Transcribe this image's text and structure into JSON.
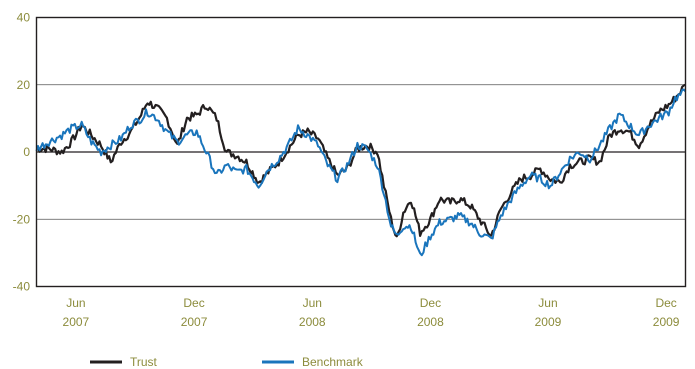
{
  "chart_data": {
    "type": "line",
    "title": "",
    "xlabel": "",
    "ylabel": "",
    "ylim": [
      -40,
      40
    ],
    "yticks": [
      -40,
      -20,
      0,
      20,
      40
    ],
    "gridlines_y": [
      -20,
      0,
      20
    ],
    "grid": true,
    "legend_position": "bottom-left",
    "x_range": [
      "2007-04",
      "2009-12"
    ],
    "x_ticks": [
      {
        "month": "2007-06",
        "label1": "Jun",
        "label2": "2007"
      },
      {
        "month": "2007-12",
        "label1": "Dec",
        "label2": "2007"
      },
      {
        "month": "2008-06",
        "label1": "Jun",
        "label2": "2008"
      },
      {
        "month": "2008-12",
        "label1": "Dec",
        "label2": "2008"
      },
      {
        "month": "2009-06",
        "label1": "Jun",
        "label2": "2009"
      },
      {
        "month": "2009-12",
        "label1": "Dec",
        "label2": "2009"
      }
    ],
    "series": [
      {
        "name": "Trust",
        "color": "#231f20",
        "points": [
          [
            "2007-04-01",
            1
          ],
          [
            "2007-04-20",
            1
          ],
          [
            "2007-05-10",
            0
          ],
          [
            "2007-05-25",
            3
          ],
          [
            "2007-06-10",
            8
          ],
          [
            "2007-06-25",
            5
          ],
          [
            "2007-07-10",
            2
          ],
          [
            "2007-07-25",
            -3
          ],
          [
            "2007-08-10",
            3
          ],
          [
            "2007-08-25",
            6
          ],
          [
            "2007-09-10",
            11
          ],
          [
            "2007-09-20",
            15
          ],
          [
            "2007-10-05",
            13
          ],
          [
            "2007-10-20",
            10
          ],
          [
            "2007-11-05",
            2
          ],
          [
            "2007-11-20",
            10
          ],
          [
            "2007-12-05",
            11
          ],
          [
            "2007-12-20",
            14
          ],
          [
            "2008-01-05",
            10
          ],
          [
            "2008-01-20",
            0
          ],
          [
            "2008-02-05",
            -1
          ],
          [
            "2008-02-20",
            -3
          ],
          [
            "2008-03-10",
            -9
          ],
          [
            "2008-03-25",
            -6
          ],
          [
            "2008-04-10",
            -3
          ],
          [
            "2008-04-25",
            1
          ],
          [
            "2008-05-10",
            5
          ],
          [
            "2008-05-25",
            6
          ],
          [
            "2008-06-10",
            4
          ],
          [
            "2008-06-25",
            -2
          ],
          [
            "2008-07-10",
            -7
          ],
          [
            "2008-07-25",
            -5
          ],
          [
            "2008-08-10",
            1
          ],
          [
            "2008-08-25",
            2
          ],
          [
            "2008-09-10",
            0
          ],
          [
            "2008-09-20",
            -10
          ],
          [
            "2008-10-01",
            -20
          ],
          [
            "2008-10-10",
            -26
          ],
          [
            "2008-10-20",
            -18
          ],
          [
            "2008-11-01",
            -14
          ],
          [
            "2008-11-15",
            -24
          ],
          [
            "2008-12-01",
            -20
          ],
          [
            "2008-12-15",
            -14
          ],
          [
            "2009-01-01",
            -15
          ],
          [
            "2009-01-15",
            -14
          ],
          [
            "2009-02-01",
            -16
          ],
          [
            "2009-02-15",
            -20
          ],
          [
            "2009-03-05",
            -25
          ],
          [
            "2009-03-20",
            -17
          ],
          [
            "2009-04-05",
            -12
          ],
          [
            "2009-04-20",
            -8
          ],
          [
            "2009-05-05",
            -7
          ],
          [
            "2009-05-20",
            -5
          ],
          [
            "2009-06-05",
            -8
          ],
          [
            "2009-06-20",
            -9
          ],
          [
            "2009-07-05",
            -4
          ],
          [
            "2009-07-20",
            -3
          ],
          [
            "2009-08-05",
            -2
          ],
          [
            "2009-08-20",
            -3
          ],
          [
            "2009-09-05",
            5
          ],
          [
            "2009-09-20",
            7
          ],
          [
            "2009-10-05",
            6
          ],
          [
            "2009-10-20",
            2
          ],
          [
            "2009-11-05",
            8
          ],
          [
            "2009-11-20",
            12
          ],
          [
            "2009-12-05",
            14
          ],
          [
            "2009-12-15",
            16
          ],
          [
            "2009-12-31",
            20
          ]
        ]
      },
      {
        "name": "Benchmark",
        "color": "#1a75bc",
        "points": [
          [
            "2007-04-01",
            1
          ],
          [
            "2007-04-20",
            3
          ],
          [
            "2007-05-10",
            5
          ],
          [
            "2007-05-25",
            7
          ],
          [
            "2007-06-10",
            8
          ],
          [
            "2007-06-25",
            3
          ],
          [
            "2007-07-10",
            0
          ],
          [
            "2007-07-25",
            2
          ],
          [
            "2007-08-10",
            4
          ],
          [
            "2007-08-25",
            8
          ],
          [
            "2007-09-10",
            10
          ],
          [
            "2007-09-20",
            12
          ],
          [
            "2007-10-05",
            10
          ],
          [
            "2007-10-20",
            6
          ],
          [
            "2007-11-05",
            3
          ],
          [
            "2007-11-20",
            5
          ],
          [
            "2007-12-05",
            6
          ],
          [
            "2007-12-20",
            0
          ],
          [
            "2008-01-05",
            -7
          ],
          [
            "2008-01-20",
            -4
          ],
          [
            "2008-02-05",
            -6
          ],
          [
            "2008-02-20",
            -5
          ],
          [
            "2008-03-10",
            -10
          ],
          [
            "2008-03-25",
            -5
          ],
          [
            "2008-04-10",
            -2
          ],
          [
            "2008-04-25",
            2
          ],
          [
            "2008-05-10",
            7
          ],
          [
            "2008-05-25",
            5
          ],
          [
            "2008-06-10",
            2
          ],
          [
            "2008-06-25",
            -4
          ],
          [
            "2008-07-10",
            -8
          ],
          [
            "2008-07-25",
            -4
          ],
          [
            "2008-08-10",
            2
          ],
          [
            "2008-08-25",
            1
          ],
          [
            "2008-09-10",
            -4
          ],
          [
            "2008-09-20",
            -12
          ],
          [
            "2008-10-01",
            -22
          ],
          [
            "2008-10-10",
            -25
          ],
          [
            "2008-10-20",
            -22
          ],
          [
            "2008-11-01",
            -22
          ],
          [
            "2008-11-15",
            -31
          ],
          [
            "2008-12-01",
            -25
          ],
          [
            "2008-12-15",
            -21
          ],
          [
            "2009-01-01",
            -20
          ],
          [
            "2009-01-15",
            -19
          ],
          [
            "2009-02-01",
            -21
          ],
          [
            "2009-02-15",
            -24
          ],
          [
            "2009-03-05",
            -26
          ],
          [
            "2009-03-20",
            -19
          ],
          [
            "2009-04-05",
            -14
          ],
          [
            "2009-04-20",
            -10
          ],
          [
            "2009-05-05",
            -7
          ],
          [
            "2009-05-20",
            -8
          ],
          [
            "2009-06-05",
            -10
          ],
          [
            "2009-06-20",
            -6
          ],
          [
            "2009-07-05",
            -2
          ],
          [
            "2009-07-20",
            0
          ],
          [
            "2009-08-05",
            -2
          ],
          [
            "2009-08-20",
            2
          ],
          [
            "2009-09-05",
            7
          ],
          [
            "2009-09-20",
            11
          ],
          [
            "2009-10-05",
            8
          ],
          [
            "2009-10-20",
            5
          ],
          [
            "2009-11-05",
            8
          ],
          [
            "2009-11-20",
            10
          ],
          [
            "2009-12-05",
            12
          ],
          [
            "2009-12-15",
            16
          ],
          [
            "2009-12-31",
            18
          ]
        ]
      }
    ]
  }
}
